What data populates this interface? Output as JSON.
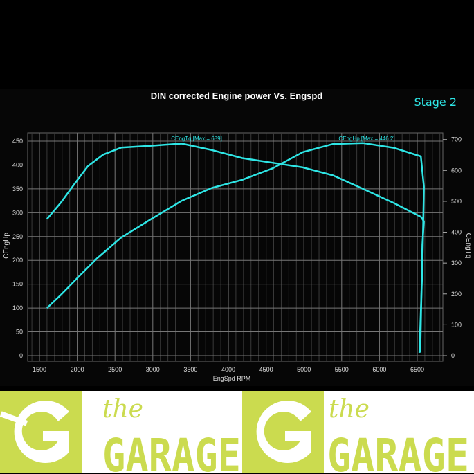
{
  "chart_data": {
    "type": "line",
    "title": "DIN corrected Engine power Vs. Engspd",
    "badge": "Stage 2",
    "xlabel": "EngSpd RPM",
    "ylabel_left": "CEngHp",
    "ylabel_right": "CEngTq",
    "xlim": [
      1345,
      6840
    ],
    "ylim_left": [
      0,
      455
    ],
    "ylim_right": [
      0,
      707
    ],
    "x_ticks": [
      1500,
      2000,
      2500,
      3000,
      3500,
      4000,
      4500,
      5000,
      5500,
      6000,
      6500
    ],
    "y_ticks_left": [
      0,
      50,
      100,
      150,
      200,
      250,
      300,
      350,
      400,
      450
    ],
    "y_ticks_right": [
      0,
      100,
      200,
      300,
      400,
      500,
      600,
      700
    ],
    "grid": true,
    "line_color": "#2ee6e6",
    "series": [
      {
        "name": "CEngTq",
        "annotation": "CEngTq [Max = 689]",
        "axis": "right",
        "x": [
          1600,
          1780,
          1981,
          2141,
          2341,
          2582,
          2982,
          3383,
          3784,
          4184,
          4585,
          4986,
          5386,
          5787,
          6188,
          6548,
          6588,
          6568,
          6540
        ],
        "y": [
          443,
          495,
          562,
          614,
          651,
          674,
          680,
          687,
          666,
          640,
          625,
          610,
          584,
          540,
          495,
          450,
          435,
          360,
          10
        ]
      },
      {
        "name": "CEngHp",
        "annotation": "CEngHp [Max = 446.2]",
        "axis": "left",
        "x": [
          1600,
          1780,
          2021,
          2261,
          2582,
          2982,
          3383,
          3784,
          4184,
          4585,
          4986,
          5386,
          5787,
          6188,
          6548,
          6588,
          6568,
          6528
        ],
        "y": [
          100,
          127,
          166,
          204,
          248,
          287,
          325,
          352,
          369,
          393,
          427,
          444,
          446,
          436,
          418,
          354,
          185,
          6
        ]
      }
    ]
  },
  "banner": {
    "logo_text_small": "the",
    "logo_text_large": "GARAGE",
    "logo_color": "#cbdb4f"
  }
}
